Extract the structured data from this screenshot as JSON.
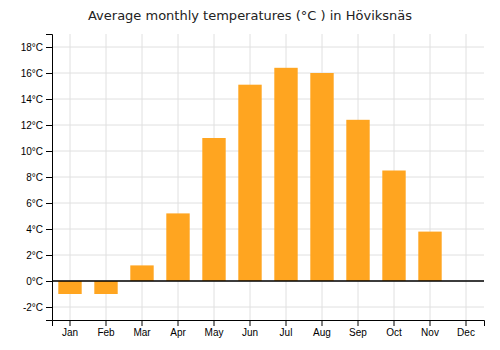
{
  "chart_data": {
    "type": "bar",
    "title": "Average monthly temperatures (°C ) in Höviksnäs",
    "categories": [
      "Jan",
      "Feb",
      "Mar",
      "Apr",
      "May",
      "Jun",
      "Jul",
      "Aug",
      "Sep",
      "Oct",
      "Nov",
      "Dec"
    ],
    "values": [
      -1.0,
      -1.0,
      1.2,
      5.2,
      11.0,
      15.1,
      16.4,
      16.0,
      12.4,
      8.5,
      3.8,
      0.0
    ],
    "color": "#FFA520",
    "ylim": [
      -3,
      19
    ],
    "yticks": [
      {
        "value": -2,
        "label": "-2°C"
      },
      {
        "value": 0,
        "label": "0°C"
      },
      {
        "value": 2,
        "label": "2°C"
      },
      {
        "value": 4,
        "label": "4°C"
      },
      {
        "value": 6,
        "label": "6°C"
      },
      {
        "value": 8,
        "label": "8°C"
      },
      {
        "value": 10,
        "label": "10°C"
      },
      {
        "value": 12,
        "label": "12°C"
      },
      {
        "value": 14,
        "label": "14°C"
      },
      {
        "value": 16,
        "label": "16°C"
      },
      {
        "value": 18,
        "label": "18°C"
      }
    ],
    "grid": true
  }
}
